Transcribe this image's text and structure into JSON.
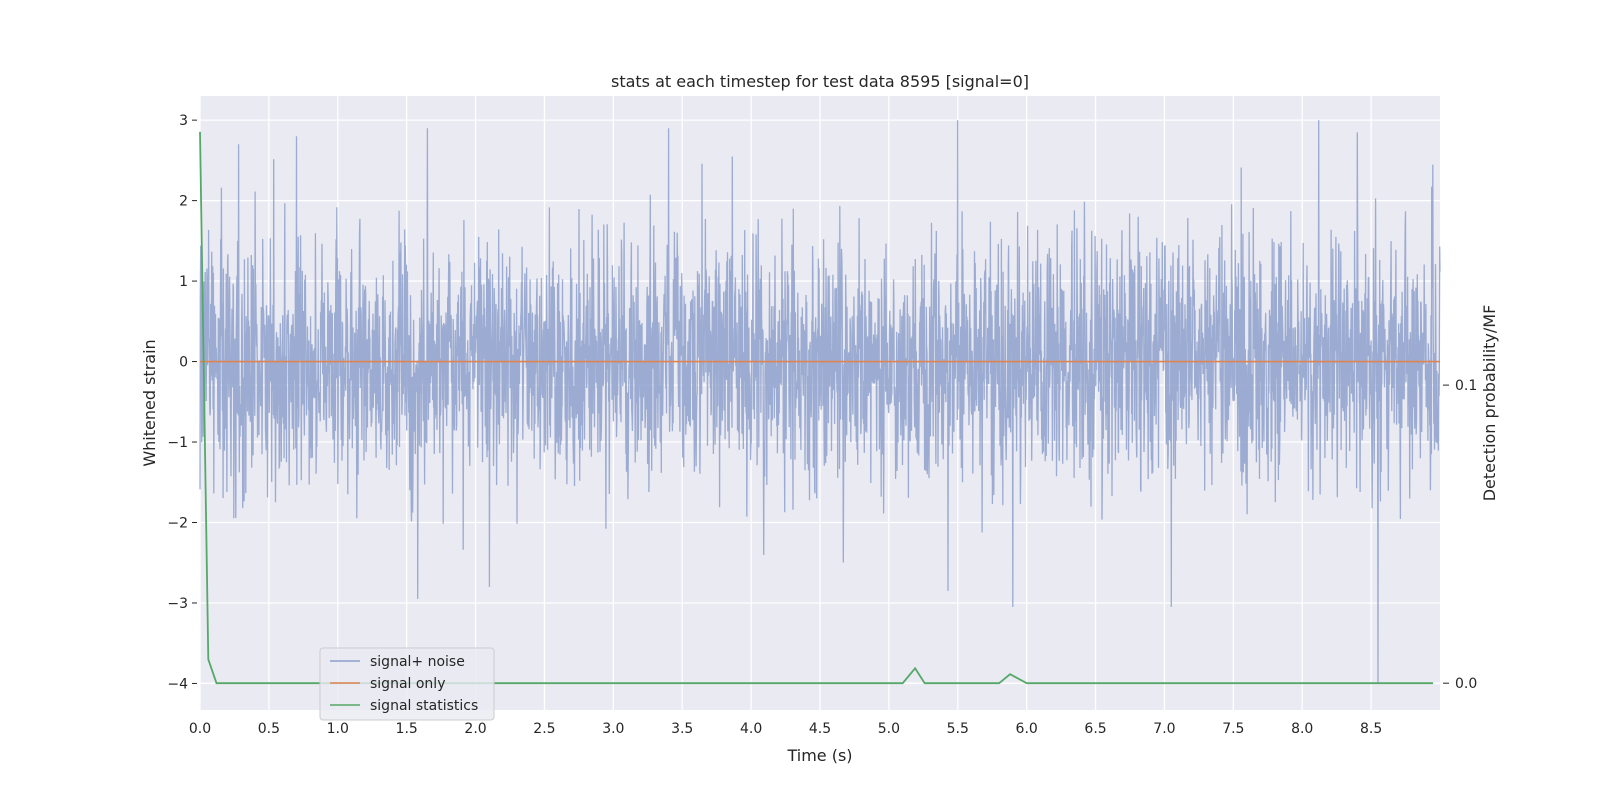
{
  "chart_data": {
    "type": "line",
    "title": "stats at each timestep for test data 8595 [signal=0]",
    "xlabel": "Time (s)",
    "ylabel": "Whitened strain",
    "y2label": "Detection probability/MF",
    "xlim": [
      0.0,
      9.0
    ],
    "ylim": [
      -4.33,
      3.3
    ],
    "y2lim": [
      -0.009,
      0.197
    ],
    "xticks": [
      0.0,
      0.5,
      1.0,
      1.5,
      2.0,
      2.5,
      3.0,
      3.5,
      4.0,
      4.5,
      5.0,
      5.5,
      6.0,
      6.5,
      7.0,
      7.5,
      8.0,
      8.5
    ],
    "xtick_labels": [
      "0.0",
      "0.5",
      "1.0",
      "1.5",
      "2.0",
      "2.5",
      "3.0",
      "3.5",
      "4.0",
      "4.5",
      "5.0",
      "5.5",
      "6.0",
      "6.5",
      "7.0",
      "7.5",
      "8.0",
      "8.5"
    ],
    "yticks": [
      3,
      2,
      1,
      0,
      -1,
      -2,
      -3,
      -4
    ],
    "ytick_labels": [
      "3",
      "2",
      "1",
      "0",
      "−1",
      "−2",
      "−3",
      "−4"
    ],
    "y2ticks": [
      0.1,
      0.0
    ],
    "y2tick_labels": [
      "0.1",
      "0.0"
    ],
    "grid": true,
    "legend_position": "lower-left",
    "series": [
      {
        "name": "signal+ noise",
        "axis": "left",
        "color": "#8da0cb",
        "style": "dense noise, std ≈ 0.75",
        "x_range": [
          0.0,
          9.0
        ],
        "samples": 3600,
        "seed": 8595,
        "y_extremes": {
          "max": 3.0,
          "min": -4.0
        },
        "spikes": [
          {
            "x": 0.28,
            "y": 2.7
          },
          {
            "x": 0.7,
            "y": 2.8
          },
          {
            "x": 1.65,
            "y": 2.9
          },
          {
            "x": 3.4,
            "y": 2.9
          },
          {
            "x": 5.5,
            "y": 3.0
          },
          {
            "x": 8.12,
            "y": 3.0
          },
          {
            "x": 8.4,
            "y": 2.85
          },
          {
            "x": 1.58,
            "y": -2.95
          },
          {
            "x": 2.1,
            "y": -2.8
          },
          {
            "x": 5.43,
            "y": -2.85
          },
          {
            "x": 5.9,
            "y": -3.05
          },
          {
            "x": 7.05,
            "y": -3.05
          },
          {
            "x": 8.55,
            "y": -4.0
          }
        ]
      },
      {
        "name": "signal only",
        "axis": "left",
        "color": "#dd8452",
        "x": [
          0.0,
          9.0
        ],
        "y": [
          0.0,
          0.0
        ]
      },
      {
        "name": "signal statistics",
        "axis": "right",
        "color": "#55a868",
        "x": [
          0.0,
          0.06,
          0.12,
          5.1,
          5.19,
          5.26,
          5.8,
          5.88,
          6.0,
          8.95
        ],
        "y": [
          0.185,
          0.008,
          0.0,
          0.0,
          0.005,
          0.0,
          0.0,
          0.003,
          0.0,
          0.0
        ]
      }
    ]
  }
}
